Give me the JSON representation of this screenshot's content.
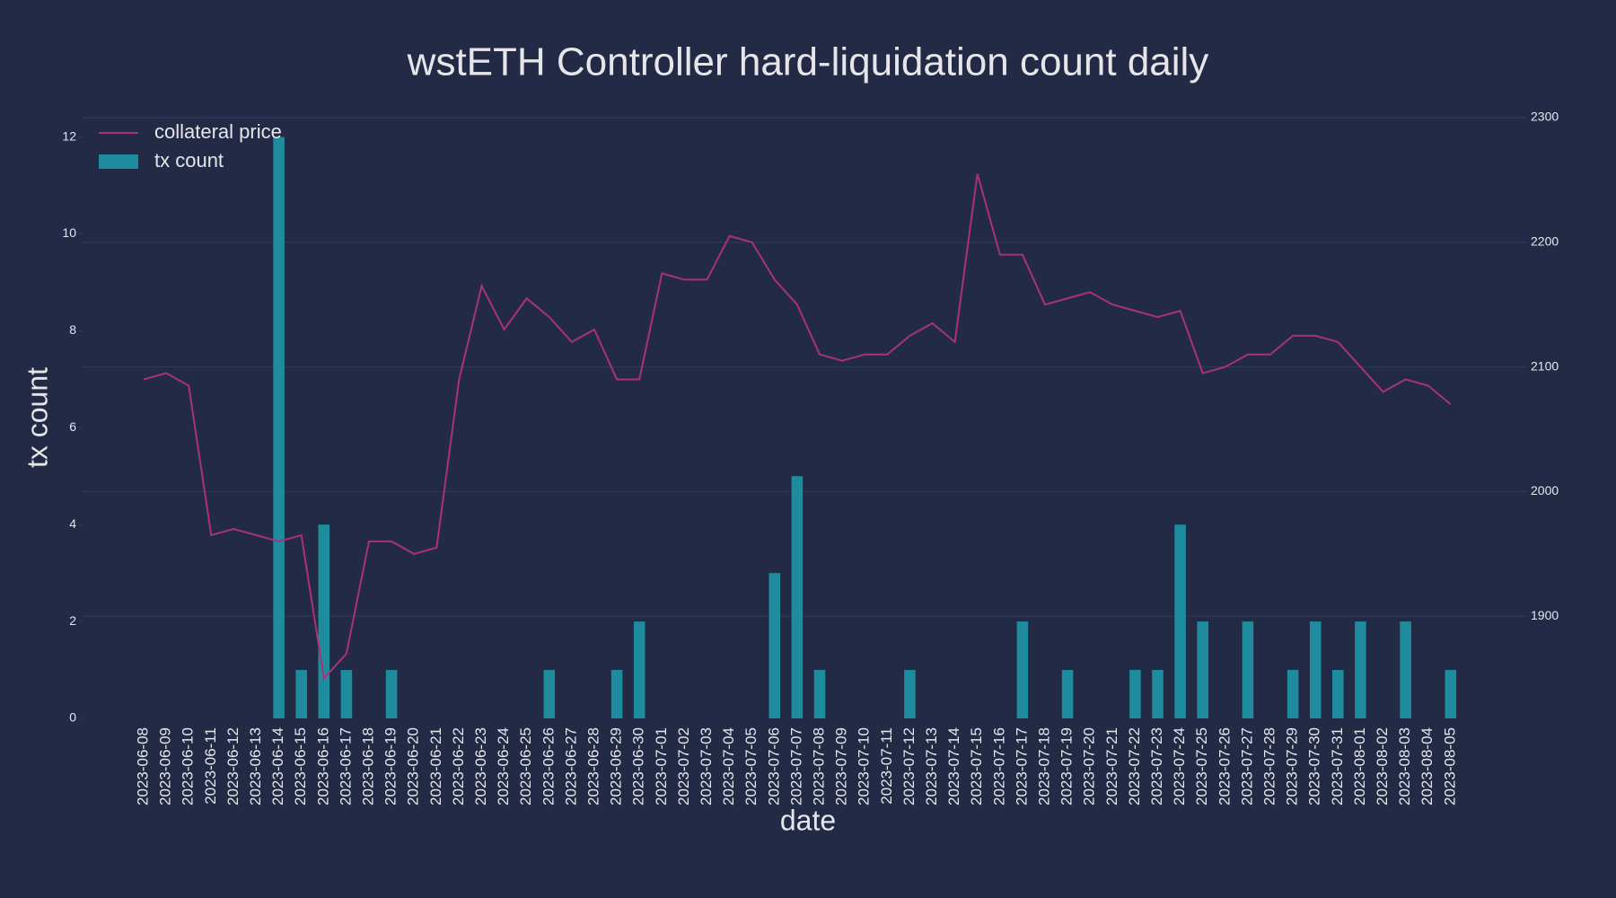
{
  "chart_data": {
    "type": "bar",
    "title": "wstETH Controller hard-liquidation count daily",
    "x_label": "date",
    "y_label": "tx count",
    "categories": [
      "2023-06-08",
      "2023-06-09",
      "2023-06-10",
      "2023-06-11",
      "2023-06-12",
      "2023-06-13",
      "2023-06-14",
      "2023-06-15",
      "2023-06-16",
      "2023-06-17",
      "2023-06-18",
      "2023-06-19",
      "2023-06-20",
      "2023-06-21",
      "2023-06-22",
      "2023-06-23",
      "2023-06-24",
      "2023-06-25",
      "2023-06-26",
      "2023-06-27",
      "2023-06-28",
      "2023-06-29",
      "2023-06-30",
      "2023-07-01",
      "2023-07-02",
      "2023-07-03",
      "2023-07-04",
      "2023-07-05",
      "2023-07-06",
      "2023-07-07",
      "2023-07-08",
      "2023-07-09",
      "2023-07-10",
      "2023-07-11",
      "2023-07-12",
      "2023-07-13",
      "2023-07-14",
      "2023-07-15",
      "2023-07-16",
      "2023-07-17",
      "2023-07-18",
      "2023-07-19",
      "2023-07-20",
      "2023-07-21",
      "2023-07-22",
      "2023-07-23",
      "2023-07-24",
      "2023-07-25",
      "2023-07-26",
      "2023-07-27",
      "2023-07-28",
      "2023-07-29",
      "2023-07-30",
      "2023-07-31",
      "2023-08-01",
      "2023-08-02",
      "2023-08-03",
      "2023-08-04",
      "2023-08-05"
    ],
    "series": [
      {
        "name": "collateral price",
        "type": "line",
        "axis": "y2",
        "color": "#a8327a",
        "values": [
          2090,
          2095,
          2085,
          1965,
          1970,
          1965,
          1960,
          1965,
          1850,
          1870,
          1960,
          1960,
          1950,
          1955,
          2090,
          2165,
          2130,
          2155,
          2140,
          2120,
          2130,
          2090,
          2090,
          2175,
          2170,
          2170,
          2205,
          2200,
          2170,
          2150,
          2110,
          2105,
          2110,
          2110,
          2125,
          2135,
          2120,
          2255,
          2190,
          2190,
          2150,
          2155,
          2160,
          2150,
          2145,
          2140,
          2145,
          2095,
          2100,
          2110,
          2110,
          2125,
          2125,
          2120,
          2100,
          2080,
          2090,
          2085,
          2070
        ]
      },
      {
        "name": "tx count",
        "type": "bar",
        "color": "#1e8c9c",
        "values": [
          0,
          0,
          0,
          0,
          0,
          0,
          12,
          1,
          4,
          1,
          0,
          1,
          0,
          0,
          0,
          0,
          0,
          0,
          1,
          0,
          0,
          1,
          2,
          0,
          0,
          0,
          0,
          0,
          3,
          5,
          1,
          0,
          0,
          0,
          1,
          0,
          0,
          0,
          0,
          2,
          0,
          1,
          0,
          0,
          1,
          1,
          4,
          2,
          0,
          2,
          0,
          1,
          2,
          1,
          2,
          0,
          2,
          0,
          1
        ]
      }
    ],
    "ylim": [
      0,
      12.4
    ],
    "yticks": [
      0,
      2,
      4,
      6,
      8,
      10,
      12
    ],
    "y2lim": [
      1818,
      2300
    ],
    "y2ticks": [
      1900,
      2000,
      2100,
      2200,
      2300
    ],
    "grid": true,
    "legend": "top-left"
  }
}
